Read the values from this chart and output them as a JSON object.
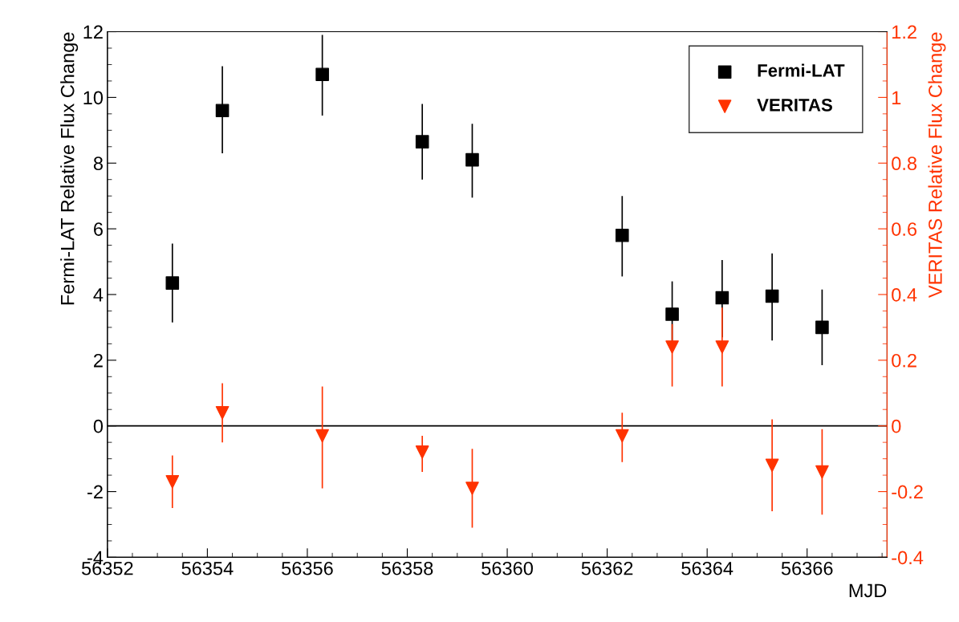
{
  "chart_data": {
    "type": "scatter",
    "xlabel": "MJD",
    "ylabel": "Fermi-LAT Relative Flux Change",
    "y2label": "VERITAS Relative Flux Change",
    "xlim": [
      56352,
      56367.6
    ],
    "xticks": [
      56352,
      56354,
      56356,
      56358,
      56360,
      56362,
      56364,
      56366
    ],
    "ylim": [
      -4,
      12
    ],
    "yticks": [
      -4,
      -2,
      0,
      2,
      4,
      6,
      8,
      10,
      12
    ],
    "y2lim": [
      -0.4,
      1.2
    ],
    "y2ticks": [
      -0.4,
      -0.2,
      0,
      0.2,
      0.4,
      0.6,
      0.8,
      1,
      1.2
    ],
    "grid": false,
    "legend": "top right",
    "ref_lines": [
      {
        "axis": "y",
        "value": 0,
        "color": "#000000"
      }
    ],
    "series": [
      {
        "name": "Fermi-LAT",
        "color": "#000000",
        "marker": "square",
        "x": [
          56353.3,
          56354.3,
          56356.3,
          56358.3,
          56359.3,
          56362.3,
          56363.3,
          56364.3,
          56365.3,
          56366.3
        ],
        "values": [
          4.35,
          9.6,
          10.7,
          8.65,
          8.1,
          5.8,
          3.4,
          3.9,
          3.95,
          3.0
        ],
        "errors": [
          [
            3.15,
            5.55
          ],
          [
            8.3,
            10.95
          ],
          [
            9.45,
            11.9
          ],
          [
            7.5,
            9.8
          ],
          [
            6.95,
            9.2
          ],
          [
            4.55,
            7.0
          ],
          [
            2.3,
            4.4
          ],
          [
            2.7,
            5.05
          ],
          [
            2.6,
            5.25
          ],
          [
            1.85,
            4.15
          ]
        ]
      },
      {
        "name": "VERITAS",
        "color": "#ff3300",
        "marker": "triangle",
        "axis": "y2",
        "x": [
          56353.3,
          56354.3,
          56356.3,
          56358.3,
          56359.3,
          56362.3,
          56363.3,
          56364.3,
          56365.3,
          56366.3
        ],
        "values": [
          -0.17,
          0.04,
          -0.03,
          -0.08,
          -0.19,
          -0.03,
          0.24,
          0.24,
          -0.12,
          -0.14
        ],
        "errors": [
          [
            -0.25,
            -0.09
          ],
          [
            -0.05,
            0.13
          ],
          [
            -0.19,
            0.12
          ],
          [
            -0.14,
            -0.03
          ],
          [
            -0.31,
            -0.07
          ],
          [
            -0.11,
            0.04
          ],
          [
            0.12,
            0.31
          ],
          [
            0.12,
            0.36
          ],
          [
            -0.26,
            0.02
          ],
          [
            -0.27,
            -0.01
          ]
        ]
      }
    ]
  }
}
